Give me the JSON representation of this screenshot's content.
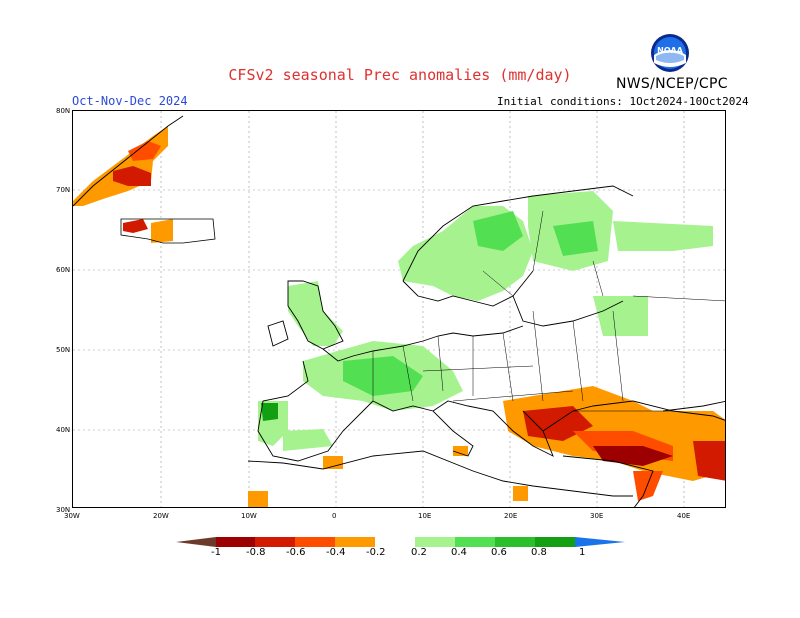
{
  "header": {
    "title": "CFSv2 seasonal Prec anomalies (mm/day)",
    "period": "Oct-Nov-Dec 2024",
    "initial_conditions": "Initial conditions: 1Oct2024-10Oct2024",
    "organization": "NWS/NCEP/CPC",
    "logo_text": "NOAA"
  },
  "map": {
    "region": "Europe",
    "lat_labels": [
      "80N",
      "70N",
      "60N",
      "50N",
      "40N",
      "30N"
    ],
    "lon_labels": [
      "30W",
      "20W",
      "10W",
      "0",
      "10E",
      "20E",
      "30E",
      "40E"
    ],
    "gridlines": true,
    "anomaly_regions": [
      {
        "area": "Greenland east coast",
        "sign": "dry",
        "level": "-0.4 to -0.8"
      },
      {
        "area": "Iceland",
        "sign": "dry",
        "level": "-0.2 to -0.6"
      },
      {
        "area": "Scandinavia and Finland",
        "sign": "wet",
        "level": "0.2 to 0.6"
      },
      {
        "area": "British Isles",
        "sign": "wet",
        "level": "0.2 to 0.4"
      },
      {
        "area": "France, Benelux, Alps",
        "sign": "wet",
        "level": "0.2 to 0.6"
      },
      {
        "area": "Iberia northwest",
        "sign": "wet",
        "level": "0.2 to 0.8"
      },
      {
        "area": "Balkans and Greece",
        "sign": "dry",
        "level": "-0.2 to -0.8"
      },
      {
        "area": "Turkey and Middle East",
        "sign": "dry",
        "level": "-0.2 to -0.8"
      },
      {
        "area": "Northwest Russia",
        "sign": "wet",
        "level": "0.2 to 0.4"
      }
    ]
  },
  "colorbar": {
    "labels": [
      "-1",
      "-0.8",
      "-0.6",
      "-0.4",
      "-0.2",
      "0.2",
      "0.4",
      "0.6",
      "0.8",
      "1"
    ],
    "colors": [
      "#6b3a2a",
      "#9c0000",
      "#d11a00",
      "#ff4d00",
      "#ff9900",
      "#ffffff",
      "#a6f28f",
      "#52e052",
      "#2cbf2c",
      "#12a012",
      "#1a73e8"
    ]
  }
}
